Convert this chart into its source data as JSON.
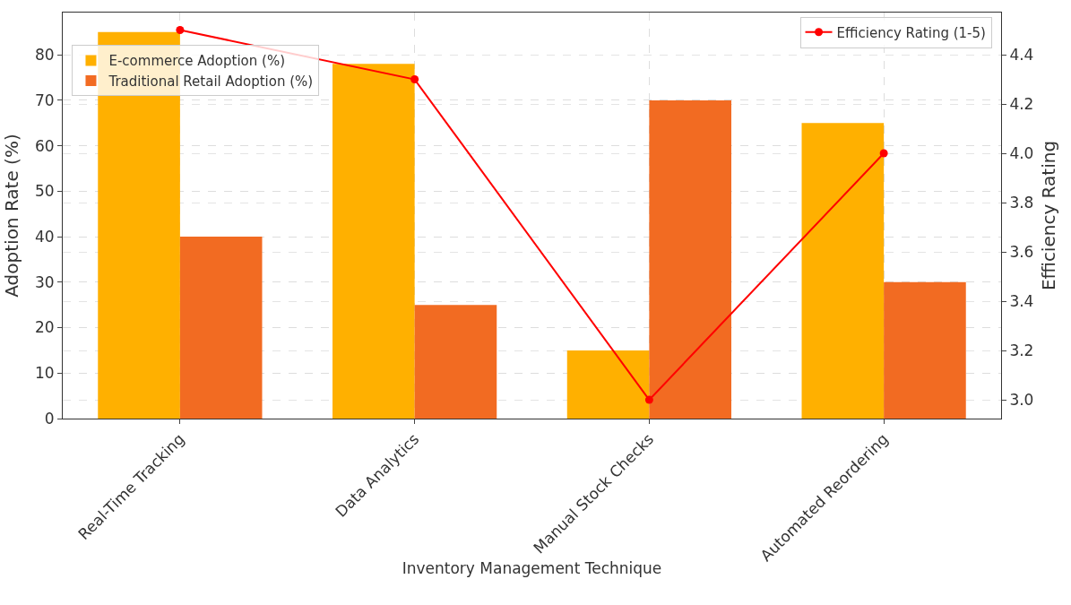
{
  "chart_data": {
    "type": "bar",
    "xlabel": "Inventory Management Technique",
    "ylabel": "Adoption Rate (%)",
    "y2label": "Efficiency Rating",
    "categories": [
      "Real-Time Tracking",
      "Data Analytics",
      "Manual Stock Checks",
      "Automated Reordering"
    ],
    "series": [
      {
        "name": "E-commerce Adoption (%)",
        "color": "#ffb000",
        "values": [
          85,
          78,
          15,
          65
        ]
      },
      {
        "name": "Traditional Retail Adoption (%)",
        "color": "#f26b22",
        "values": [
          40,
          25,
          70,
          30
        ]
      },
      {
        "name": "Efficiency Rating (1-5)",
        "type": "line",
        "axis": "y2",
        "color": "#ff0000",
        "marker": "circle",
        "line_style": "solid",
        "values": [
          4.5,
          4.3,
          3.0,
          4.0
        ]
      }
    ],
    "ylim": [
      0,
      89.3
    ],
    "yticks": [
      0,
      10,
      20,
      30,
      40,
      50,
      60,
      70,
      80
    ],
    "y2lim": [
      2.924,
      4.571
    ],
    "y2ticks": [
      {
        "value": 3.0,
        "label": "3.0"
      },
      {
        "value": 3.2,
        "label": "3.2"
      },
      {
        "value": 3.4,
        "label": "3.4"
      },
      {
        "value": 3.6,
        "label": "3.6"
      },
      {
        "value": 3.8,
        "label": "3.8"
      },
      {
        "value": 4.0,
        "label": "4.0"
      },
      {
        "value": 4.2,
        "label": "4.2"
      },
      {
        "value": 4.4,
        "label": "4.4"
      }
    ],
    "grid": true,
    "legend": "top"
  }
}
